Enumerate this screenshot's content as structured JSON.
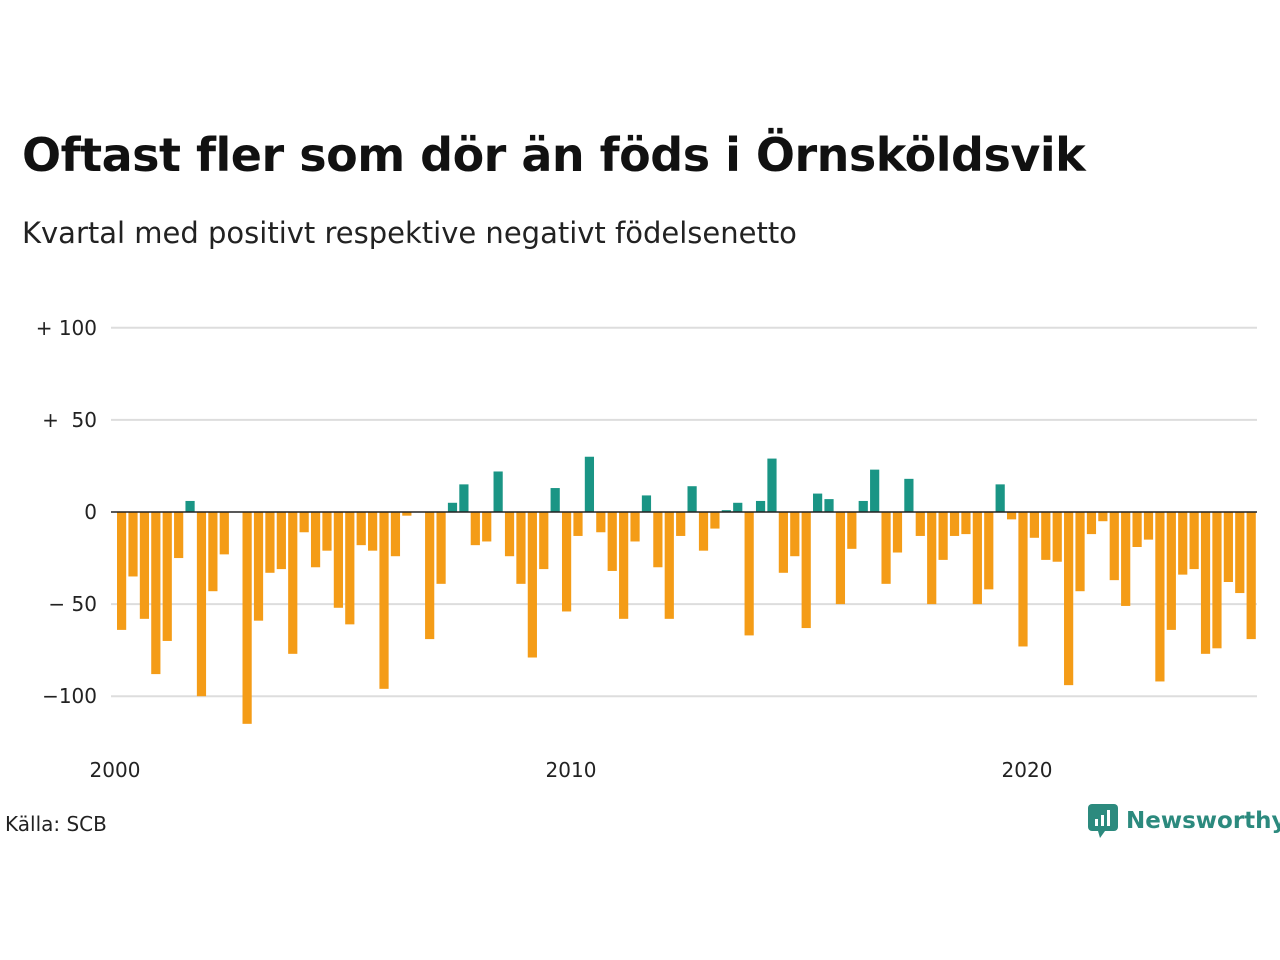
{
  "title": "Oftast fler som dör än föds i Örnsköldsvik",
  "subtitle": "Kvartal med positivt respektive negativt födelsenetto",
  "source": "Källa: SCB",
  "brand": {
    "name": "Newsworthy",
    "icon": "newsworthy-logo-icon"
  },
  "colors": {
    "positive": "#1a9585",
    "negative": "#f49c17",
    "grid": "#dddddd",
    "zero_line": "#222222"
  },
  "chart_data": {
    "type": "bar",
    "title": "Oftast fler som dör än föds i Örnsköldsvik",
    "subtitle": "Kvartal med positivt respektive negativt födelsenetto",
    "x_start": "2000 Q1",
    "x_ticks": [
      "2000",
      "2010",
      "2020"
    ],
    "y_ticks": [
      {
        "value": 100,
        "label": "+ 100"
      },
      {
        "value": 50,
        "label": "+  50"
      },
      {
        "value": 0,
        "label": "0"
      },
      {
        "value": -50,
        "label": "− 50"
      },
      {
        "value": -100,
        "label": "−100"
      }
    ],
    "ylim": [
      -120,
      110
    ],
    "grid": true,
    "values": [
      -64,
      -35,
      -58,
      -88,
      -70,
      -25,
      6,
      -100,
      -43,
      -23,
      0,
      -115,
      -59,
      -33,
      -31,
      -77,
      -11,
      -30,
      -21,
      -52,
      -61,
      -18,
      -21,
      -96,
      -24,
      -2,
      0,
      -69,
      -39,
      5,
      15,
      -18,
      -16,
      22,
      -24,
      -39,
      -79,
      -31,
      13,
      -54,
      -13,
      30,
      -11,
      -32,
      -58,
      -16,
      9,
      -30,
      -58,
      -13,
      14,
      -21,
      -9,
      1,
      5,
      -67,
      6,
      29,
      -33,
      -24,
      -63,
      10,
      7,
      -50,
      -20,
      6,
      23,
      -39,
      -22,
      18,
      -13,
      -50,
      -26,
      -13,
      -12,
      -50,
      -42,
      15,
      -4,
      -73,
      -14,
      -26,
      -27,
      -94,
      -43,
      -12,
      -5,
      -37,
      -51,
      -19,
      -15,
      -92,
      -64,
      -34,
      -31,
      -77,
      -74,
      -38,
      -44,
      -69
    ]
  }
}
